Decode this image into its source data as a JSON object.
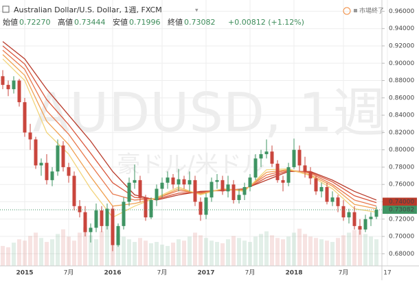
{
  "header": {
    "symbol": "Australian Dollar/U.S. Dollar, 1週, FXCM",
    "open_label": "始値",
    "open": "0.72270",
    "high_label": "高値",
    "high": "0.73444",
    "low_label": "安値",
    "low": "0.71996",
    "close_label": "終値",
    "close": "0.73082",
    "change": "+0.00812 (+1.12%)",
    "status": "市場終了"
  },
  "watermark": {
    "symbol": "AUDUSD, 1週",
    "name": "豪ドル/米ドル"
  },
  "chart_data": {
    "type": "candlestick",
    "categories": [
      null,
      null,
      null,
      null,
      "2015",
      null,
      null,
      null,
      null,
      null,
      null,
      null,
      "7月",
      null,
      null,
      null,
      null,
      null,
      null,
      null,
      "2016",
      null,
      null,
      null,
      null,
      null,
      null,
      null,
      null,
      "7月",
      null,
      null,
      null,
      null,
      null,
      null,
      null,
      "2017",
      null,
      null,
      null,
      null,
      null,
      null,
      null,
      "7月",
      null,
      null,
      null,
      null,
      null,
      null,
      null,
      "2018",
      null,
      null,
      null,
      null,
      null,
      null,
      null,
      null,
      "7月",
      null,
      null,
      null,
      null,
      null,
      null,
      null,
      "17"
    ],
    "open": [
      0.885,
      0.875,
      0.87,
      0.88,
      0.855,
      0.82,
      0.812,
      0.782,
      0.785,
      0.765,
      0.775,
      0.805,
      0.78,
      0.77,
      0.735,
      0.728,
      0.705,
      0.71,
      0.73,
      0.712,
      0.732,
      0.69,
      0.712,
      0.74,
      0.762,
      0.765,
      0.745,
      0.722,
      0.742,
      0.755,
      0.762,
      0.768,
      0.76,
      0.766,
      0.76,
      0.765,
      0.74,
      0.725,
      0.745,
      0.763,
      0.765,
      0.752,
      0.76,
      0.742,
      0.748,
      0.757,
      0.768,
      0.79,
      0.795,
      0.798,
      0.784,
      0.765,
      0.762,
      0.78,
      0.8,
      0.782,
      0.775,
      0.767,
      0.752,
      0.757,
      0.74,
      0.745,
      0.735,
      0.722,
      0.728,
      0.712,
      0.708,
      0.72,
      0.7227,
      null,
      null
    ],
    "high": [
      0.892,
      0.88,
      0.885,
      0.882,
      0.86,
      0.83,
      0.815,
      0.79,
      0.795,
      0.78,
      0.812,
      0.81,
      0.785,
      0.775,
      0.742,
      0.735,
      0.715,
      0.738,
      0.735,
      0.738,
      0.735,
      0.715,
      0.745,
      0.768,
      0.783,
      0.77,
      0.748,
      0.745,
      0.76,
      0.768,
      0.775,
      0.772,
      0.778,
      0.77,
      0.775,
      0.77,
      0.745,
      0.75,
      0.768,
      0.772,
      0.77,
      0.77,
      0.765,
      0.755,
      0.762,
      0.772,
      0.795,
      0.8,
      0.812,
      0.805,
      0.788,
      0.77,
      0.785,
      0.813,
      0.805,
      0.792,
      0.78,
      0.77,
      0.762,
      0.762,
      0.752,
      0.748,
      0.742,
      0.732,
      0.735,
      0.72,
      0.725,
      0.728,
      0.73444,
      null,
      null
    ],
    "low": [
      0.87,
      0.862,
      0.865,
      0.85,
      0.815,
      0.8,
      0.778,
      0.77,
      0.76,
      0.758,
      0.77,
      0.775,
      0.762,
      0.73,
      0.722,
      0.7,
      0.693,
      0.705,
      0.705,
      0.708,
      0.683,
      0.688,
      0.708,
      0.735,
      0.755,
      0.74,
      0.718,
      0.72,
      0.735,
      0.745,
      0.755,
      0.755,
      0.752,
      0.755,
      0.752,
      0.735,
      0.718,
      0.72,
      0.74,
      0.755,
      0.748,
      0.745,
      0.738,
      0.738,
      0.742,
      0.752,
      0.765,
      0.78,
      0.79,
      0.78,
      0.762,
      0.752,
      0.758,
      0.778,
      0.775,
      0.768,
      0.76,
      0.748,
      0.745,
      0.737,
      0.735,
      0.728,
      0.718,
      0.715,
      0.708,
      0.702,
      0.705,
      0.712,
      0.71996,
      null,
      null
    ],
    "close": [
      0.875,
      0.87,
      0.88,
      0.855,
      0.82,
      0.812,
      0.782,
      0.785,
      0.765,
      0.775,
      0.805,
      0.78,
      0.77,
      0.735,
      0.728,
      0.705,
      0.71,
      0.73,
      0.712,
      0.732,
      0.69,
      0.712,
      0.74,
      0.762,
      0.765,
      0.745,
      0.722,
      0.742,
      0.755,
      0.762,
      0.768,
      0.76,
      0.766,
      0.76,
      0.765,
      0.74,
      0.725,
      0.745,
      0.763,
      0.765,
      0.752,
      0.76,
      0.742,
      0.748,
      0.757,
      0.768,
      0.79,
      0.795,
      0.798,
      0.784,
      0.765,
      0.762,
      0.78,
      0.8,
      0.782,
      0.775,
      0.767,
      0.752,
      0.757,
      0.74,
      0.745,
      0.735,
      0.722,
      0.728,
      0.712,
      0.708,
      0.72,
      0.7227,
      0.73082,
      null,
      null
    ],
    "volume": [
      30,
      28,
      35,
      40,
      38,
      45,
      50,
      42,
      36,
      40,
      48,
      55,
      44,
      38,
      50,
      58,
      46,
      40,
      52,
      60,
      62,
      48,
      44,
      40,
      36,
      42,
      38,
      34,
      36,
      32,
      30,
      35,
      40,
      38,
      44,
      50,
      46,
      42,
      38,
      36,
      34,
      40,
      45,
      42,
      38,
      36,
      44,
      48,
      52,
      46,
      42,
      40,
      44,
      50,
      56,
      48,
      44,
      42,
      40,
      38,
      36,
      42,
      46,
      50,
      54,
      58,
      48,
      44,
      40,
      null,
      null
    ],
    "volume_lim": [
      0,
      400
    ],
    "up_color": "#3f9463",
    "down_color": "#c9463d",
    "ribbon_x": [
      0,
      4,
      8,
      12,
      16,
      20,
      24,
      28,
      32,
      36,
      40,
      44,
      48,
      52,
      56,
      60,
      64,
      68
    ],
    "ribbons": [
      {
        "color": "#b83a2a",
        "values": [
          0.925,
          0.905,
          0.87,
          0.84,
          0.81,
          0.775,
          0.748,
          0.742,
          0.748,
          0.752,
          0.753,
          0.755,
          0.765,
          0.775,
          0.775,
          0.765,
          0.752,
          0.742
        ]
      },
      {
        "color": "#d9553a",
        "values": [
          0.92,
          0.899,
          0.858,
          0.829,
          0.796,
          0.762,
          0.745,
          0.743,
          0.75,
          0.751,
          0.754,
          0.754,
          0.768,
          0.776,
          0.774,
          0.763,
          0.747,
          0.739
        ]
      },
      {
        "color": "#e8774a",
        "values": [
          0.915,
          0.893,
          0.845,
          0.818,
          0.783,
          0.749,
          0.742,
          0.744,
          0.753,
          0.75,
          0.754,
          0.754,
          0.771,
          0.777,
          0.773,
          0.76,
          0.742,
          0.735
        ]
      },
      {
        "color": "#f0a050",
        "values": [
          0.91,
          0.886,
          0.833,
          0.806,
          0.769,
          0.735,
          0.738,
          0.744,
          0.755,
          0.749,
          0.755,
          0.753,
          0.774,
          0.777,
          0.771,
          0.758,
          0.737,
          0.732
        ]
      },
      {
        "color": "#f2d37a",
        "values": [
          0.905,
          0.88,
          0.82,
          0.795,
          0.755,
          0.722,
          0.735,
          0.745,
          0.757,
          0.748,
          0.755,
          0.752,
          0.777,
          0.778,
          0.77,
          0.755,
          0.732,
          0.728
        ]
      }
    ],
    "ribbon_label": "0.74000",
    "ribbon_label_value": 0.74,
    "last_price_label": "0.73082",
    "last_price": 0.73082,
    "ylim": [
      0.666,
      0.973
    ],
    "yticks": [
      {
        "value": 0.96,
        "label": "0.96000"
      },
      {
        "value": 0.94,
        "label": "0.94000"
      },
      {
        "value": 0.92,
        "label": "0.92000"
      },
      {
        "value": 0.9,
        "label": "0.90000"
      },
      {
        "value": 0.88,
        "label": "0.88000"
      },
      {
        "value": 0.86,
        "label": "0.86000"
      },
      {
        "value": 0.84,
        "label": "0.84000"
      },
      {
        "value": 0.82,
        "label": "0.82000"
      },
      {
        "value": 0.8,
        "label": "0.80000"
      },
      {
        "value": 0.78,
        "label": "0.78000"
      },
      {
        "value": 0.76,
        "label": "0.76000"
      },
      {
        "value": 0.74,
        "label": "0.74000"
      },
      {
        "value": 0.72,
        "label": "0.72000"
      },
      {
        "value": 0.7,
        "label": "0.70000"
      },
      {
        "value": 0.68,
        "label": "0.68000"
      }
    ],
    "grid": true
  }
}
